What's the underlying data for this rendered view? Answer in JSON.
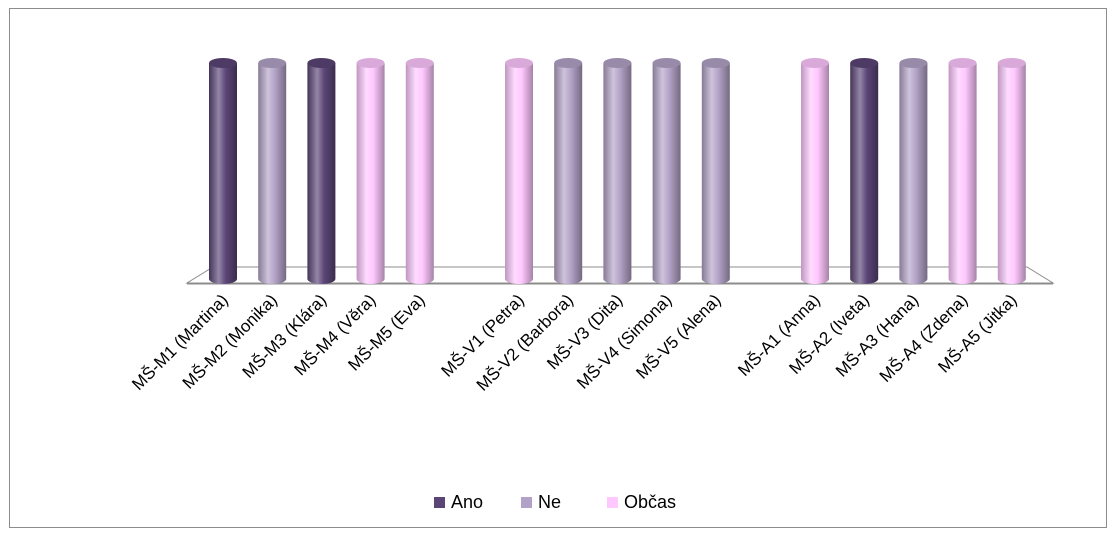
{
  "chart_data": {
    "type": "bar",
    "style": "3d-cylinder",
    "categories": [
      "MŠ-M1 (Martina)",
      "MŠ-M2 (Monika)",
      "MŠ-M3 (Klára)",
      "MŠ-M4 (Věra)",
      "MŠ-M5 (Eva)",
      "MŠ-V1 (Petra)",
      "MŠ-V2  (Barbora)",
      "MŠ-V3 (Dita)",
      "MŠ-V4 (Simona)",
      "MŠ-V5 (Alena)",
      "MŠ-A1 (Anna)",
      "MŠ-A2 (Iveta)",
      "MŠ-A3 (Hana)",
      "MŠ-A4 (Zdena)",
      "MŠ-A5 (Jitka)"
    ],
    "groups": [
      [
        0,
        1,
        2,
        3,
        4
      ],
      [
        5,
        6,
        7,
        8,
        9
      ],
      [
        10,
        11,
        12,
        13,
        14
      ]
    ],
    "responses": [
      "Ano",
      "Ne",
      "Ano",
      "Občas",
      "Občas",
      "Občas",
      "Ne",
      "Ne",
      "Ne",
      "Ne",
      "Občas",
      "Ano",
      "Ne",
      "Občas",
      "Občas"
    ],
    "values": [
      1,
      1,
      1,
      1,
      1,
      1,
      1,
      1,
      1,
      1,
      1,
      1,
      1,
      1,
      1
    ],
    "series": [
      {
        "name": "Ano",
        "color": "#5b4577"
      },
      {
        "name": "Ne",
        "color": "#b3a2c7"
      },
      {
        "name": "Občas",
        "color": "#ffc8ff"
      }
    ],
    "legend_position": "bottom",
    "grid": false,
    "ylim": [
      0,
      1
    ]
  }
}
